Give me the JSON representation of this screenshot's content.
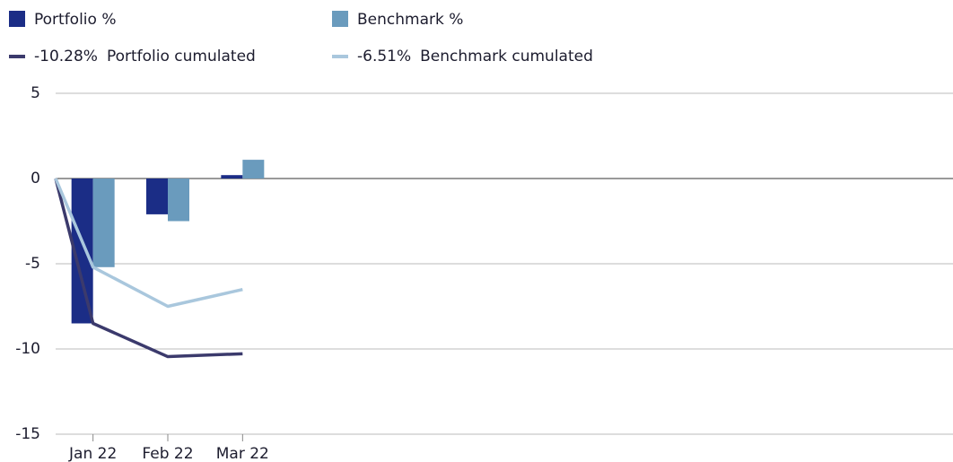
{
  "chart_data": {
    "type": "bar",
    "categories": [
      "Jan 22",
      "Feb 22",
      "Mar 22",
      null,
      null,
      null,
      null,
      null,
      null,
      null,
      null,
      null
    ],
    "series": [
      {
        "name": "Portfolio %",
        "color": "#1b2d86",
        "values": [
          -8.5,
          -2.1,
          0.2,
          null,
          null,
          null,
          null,
          null,
          null,
          null,
          null,
          null
        ]
      },
      {
        "name": "Benchmark %",
        "color": "#6a9bbd",
        "values": [
          -5.2,
          -2.5,
          1.1,
          null,
          null,
          null,
          null,
          null,
          null,
          null,
          null,
          null
        ]
      }
    ],
    "lines": [
      {
        "name": "Portfolio cumulated",
        "label": "-10.28%",
        "color": "#3b3a6c",
        "values": [
          0,
          -8.5,
          -10.45,
          -10.28
        ]
      },
      {
        "name": "Benchmark cumulated",
        "label": "-6.51%",
        "color": "#a9c7dd",
        "values": [
          0,
          -5.2,
          -7.5,
          -6.51
        ]
      }
    ],
    "ylim": [
      -15,
      5
    ],
    "yticks": [
      -15,
      -10,
      -5,
      0,
      5
    ],
    "grid": true
  }
}
